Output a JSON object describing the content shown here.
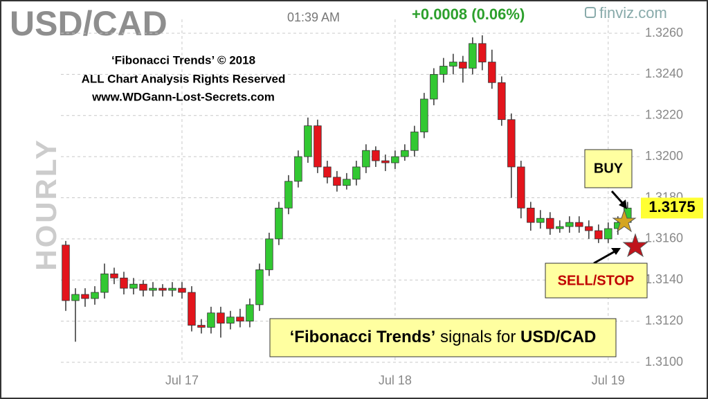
{
  "chart_data": {
    "type": "candlestick",
    "title": "USD/CAD",
    "time": "01:39 AM",
    "change": "+0.0008 (0.06%)",
    "source": "finviz.com",
    "interval": "HOURLY",
    "notice": [
      "‘Fibonacci Trends’  © 2018",
      "ALL Chart Analysis Rights Reserved",
      "www.WDGann-Lost-Secrets.com"
    ],
    "buy_label": "BUY",
    "sell_label": "SELL/STOP",
    "banner": {
      "brand": "‘Fibonacci Trends’",
      "text": " signals for ",
      "symbol": "USD/CAD"
    },
    "current_price": 1.3175,
    "up_color": "#32c832",
    "down_color": "#e3141c",
    "grid": true,
    "categories": [
      null,
      null,
      null,
      null,
      null,
      null,
      null,
      null,
      null,
      null,
      null,
      null,
      "Jul 17",
      null,
      null,
      null,
      null,
      null,
      null,
      null,
      null,
      null,
      null,
      null,
      null,
      null,
      null,
      null,
      null,
      null,
      null,
      null,
      null,
      null,
      "Jul 18",
      null,
      null,
      null,
      null,
      null,
      null,
      null,
      null,
      null,
      null,
      null,
      null,
      null,
      null,
      null,
      null,
      null,
      null,
      null,
      null,
      null,
      "Jul 19",
      null,
      null
    ],
    "open": [
      1.3157,
      1.313,
      1.3133,
      1.3131,
      1.3134,
      1.3143,
      1.3141,
      1.3136,
      1.3138,
      1.3135,
      1.3136,
      1.3135,
      1.3136,
      1.3134,
      1.3118,
      1.3117,
      1.3124,
      1.3119,
      1.3122,
      1.312,
      1.3128,
      1.3145,
      1.316,
      1.3175,
      1.3188,
      1.32,
      1.3215,
      1.3195,
      1.319,
      1.3186,
      1.3189,
      1.3195,
      1.3203,
      1.3198,
      1.3197,
      1.32,
      1.3203,
      1.3212,
      1.3228,
      1.324,
      1.3244,
      1.3246,
      1.3243,
      1.3255,
      1.3246,
      1.3236,
      1.3218,
      1.3195,
      1.3175,
      1.3168,
      1.317,
      1.3165,
      1.3166,
      1.3168,
      1.3166,
      1.3164,
      1.316,
      1.3165,
      1.3168
    ],
    "high": [
      1.3159,
      1.3136,
      1.3136,
      1.3137,
      1.3148,
      1.3146,
      1.3144,
      1.3141,
      1.314,
      1.3139,
      1.3138,
      1.3139,
      1.3139,
      1.3137,
      1.3121,
      1.3127,
      1.3127,
      1.3125,
      1.3126,
      1.3131,
      1.3148,
      1.3163,
      1.3178,
      1.3191,
      1.3203,
      1.3219,
      1.3218,
      1.3198,
      1.3193,
      1.3192,
      1.3198,
      1.3206,
      1.3205,
      1.3201,
      1.3203,
      1.3206,
      1.3215,
      1.3231,
      1.3243,
      1.3248,
      1.325,
      1.3249,
      1.3258,
      1.3259,
      1.3252,
      1.3239,
      1.3221,
      1.3198,
      1.3178,
      1.3174,
      1.3173,
      1.3169,
      1.3171,
      1.3171,
      1.3169,
      1.3167,
      1.3168,
      1.3171,
      1.3178
    ],
    "low": [
      1.3125,
      1.311,
      1.3127,
      1.3128,
      1.3131,
      1.3138,
      1.3133,
      1.3133,
      1.3132,
      1.3132,
      1.3132,
      1.3132,
      1.3131,
      1.3115,
      1.3114,
      1.3114,
      1.3112,
      1.3116,
      1.3117,
      1.3117,
      1.3125,
      1.3142,
      1.3157,
      1.3172,
      1.3185,
      1.3197,
      1.3192,
      1.3187,
      1.3183,
      1.3184,
      1.3186,
      1.3192,
      1.3195,
      1.3193,
      1.3194,
      1.3198,
      1.32,
      1.3209,
      1.3225,
      1.3236,
      1.324,
      1.3236,
      1.324,
      1.3242,
      1.3233,
      1.3215,
      1.318,
      1.317,
      1.3164,
      1.3165,
      1.3162,
      1.3163,
      1.3163,
      1.3163,
      1.316,
      1.3158,
      1.3158,
      1.3162,
      1.3165
    ],
    "close": [
      1.313,
      1.3133,
      1.3131,
      1.3134,
      1.3143,
      1.3141,
      1.3136,
      1.3138,
      1.3135,
      1.3136,
      1.3135,
      1.3136,
      1.3134,
      1.3118,
      1.3117,
      1.3124,
      1.3119,
      1.3122,
      1.312,
      1.3128,
      1.3145,
      1.316,
      1.3175,
      1.3188,
      1.32,
      1.3215,
      1.3195,
      1.319,
      1.3186,
      1.3189,
      1.3195,
      1.3203,
      1.3198,
      1.3197,
      1.32,
      1.3203,
      1.3212,
      1.3228,
      1.324,
      1.3244,
      1.3246,
      1.3243,
      1.3255,
      1.3246,
      1.3236,
      1.3218,
      1.3195,
      1.3175,
      1.3168,
      1.317,
      1.3165,
      1.3166,
      1.3168,
      1.3166,
      1.3164,
      1.316,
      1.3165,
      1.3168,
      1.3175
    ],
    "ylim": [
      1.31,
      1.326
    ],
    "yticks": [
      {
        "value": 1.31,
        "label": "1.3100"
      },
      {
        "value": 1.312,
        "label": "1.3120"
      },
      {
        "value": 1.314,
        "label": "1.3140"
      },
      {
        "value": 1.316,
        "label": "1.3160"
      },
      {
        "value": 1.318,
        "label": "1.3180"
      },
      {
        "value": 1.32,
        "label": "1.3200"
      },
      {
        "value": 1.322,
        "label": "1.3220"
      },
      {
        "value": 1.324,
        "label": "1.3240"
      },
      {
        "value": 1.326,
        "label": "1.3260"
      }
    ]
  }
}
